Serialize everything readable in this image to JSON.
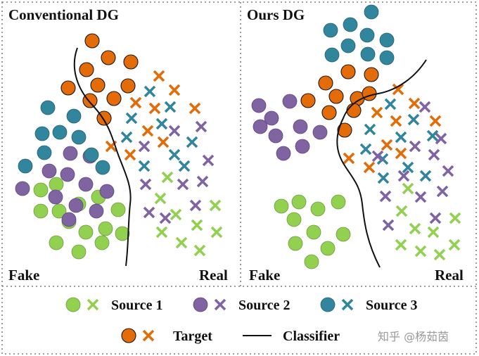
{
  "colors": {
    "source1": "#92d050",
    "source2": "#8064a2",
    "source3": "#31859c",
    "target": "#e36c09",
    "classifier": "#111111",
    "border": "#7f7f7f"
  },
  "panels": {
    "left": {
      "title": "Conventional DG",
      "fake_label": "Fake",
      "real_label": "Real",
      "points": [
        {
          "group": "source1",
          "marker": "circle",
          "items": [
            [
              58,
              270
            ],
            [
              80,
              262
            ],
            [
              58,
              300
            ],
            [
              84,
              300
            ],
            [
              112,
              290
            ],
            [
              140,
              280
            ],
            [
              168,
              298
            ],
            [
              98,
              315
            ],
            [
              122,
              330
            ],
            [
              150,
              325
            ],
            [
              174,
              332
            ],
            [
              80,
              345
            ],
            [
              112,
              358
            ],
            [
              145,
              345
            ]
          ]
        },
        {
          "group": "source2",
          "marker": "circle",
          "items": [
            [
              100,
              218
            ],
            [
              128,
              222
            ],
            [
              70,
              243
            ],
            [
              96,
              248
            ],
            [
              122,
              262
            ],
            [
              152,
              272
            ],
            [
              32,
              268
            ],
            [
              79,
              280
            ],
            [
              108,
              292
            ],
            [
              137,
              300
            ],
            [
              98,
              312
            ]
          ]
        },
        {
          "group": "source3",
          "marker": "circle",
          "items": [
            [
              68,
              153
            ],
            [
              105,
              165
            ],
            [
              60,
              190
            ],
            [
              85,
              188
            ],
            [
              112,
              195
            ],
            [
              130,
              220
            ],
            [
              63,
              217
            ],
            [
              36,
              236
            ],
            [
              146,
              238
            ]
          ]
        },
        {
          "group": "target",
          "marker": "circle",
          "items": [
            [
              131,
              58
            ],
            [
              154,
              82
            ],
            [
              186,
              88
            ],
            [
              123,
              99
            ],
            [
              139,
              121
            ],
            [
              182,
              122
            ],
            [
              97,
              125
            ],
            [
              128,
              143
            ],
            [
              162,
              140
            ],
            [
              148,
              168
            ]
          ]
        },
        {
          "group": "target",
          "marker": "cross",
          "items": [
            [
              226,
              108
            ],
            [
              248,
              128
            ],
            [
              193,
              146
            ],
            [
              220,
              154
            ],
            [
              277,
              154
            ],
            [
              210,
              186
            ],
            [
              232,
              202
            ],
            [
              158,
              208
            ],
            [
              185,
              220
            ]
          ]
        },
        {
          "group": "source3",
          "marker": "cross",
          "items": [
            [
              213,
              130
            ],
            [
              242,
              152
            ],
            [
              187,
              168
            ],
            [
              230,
              176
            ],
            [
              180,
              195
            ],
            [
              273,
              202
            ],
            [
              248,
              220
            ],
            [
              205,
              236
            ],
            [
              262,
              236
            ]
          ]
        },
        {
          "group": "source2",
          "marker": "cross",
          "items": [
            [
              286,
              180
            ],
            [
              248,
              186
            ],
            [
              205,
              208
            ],
            [
              296,
              228
            ],
            [
              207,
              262
            ],
            [
              260,
              262
            ],
            [
              288,
              258
            ],
            [
              212,
              302
            ],
            [
              278,
              292
            ],
            [
              235,
              310
            ]
          ]
        },
        {
          "group": "source1",
          "marker": "cross",
          "items": [
            [
              238,
              252
            ],
            [
              228,
              282
            ],
            [
              306,
              292
            ],
            [
              250,
              305
            ],
            [
              280,
              320
            ],
            [
              230,
              330
            ],
            [
              308,
              330
            ],
            [
              258,
              345
            ],
            [
              284,
              356
            ]
          ]
        }
      ]
    },
    "right": {
      "title": "Ours DG",
      "fake_label": "Fake",
      "real_label": "Real",
      "points": [
        {
          "group": "source3",
          "marker": "circle",
          "items": [
            [
              528,
              17
            ],
            [
              498,
              35
            ],
            [
              470,
              43
            ],
            [
              522,
              50
            ],
            [
              550,
              57
            ],
            [
              495,
              65
            ],
            [
              523,
              77
            ],
            [
              550,
              82
            ],
            [
              472,
              78
            ]
          ]
        },
        {
          "group": "target",
          "marker": "circle",
          "items": [
            [
              495,
              102
            ],
            [
              528,
              106
            ],
            [
              463,
              118
            ],
            [
              438,
              143
            ],
            [
              478,
              137
            ],
            [
              508,
              140
            ],
            [
              525,
              133
            ],
            [
              468,
              160
            ],
            [
              503,
              157
            ],
            [
              490,
              185
            ]
          ]
        },
        {
          "group": "source2",
          "marker": "circle",
          "items": [
            [
              368,
              150
            ],
            [
              386,
              168
            ],
            [
              412,
              144
            ],
            [
              370,
              180
            ],
            [
              392,
              193
            ],
            [
              427,
              180
            ],
            [
              455,
              188
            ],
            [
              403,
              218
            ],
            [
              430,
              208
            ]
          ]
        },
        {
          "group": "source1",
          "marker": "circle",
          "items": [
            [
              400,
              293
            ],
            [
              425,
              287
            ],
            [
              452,
              297
            ],
            [
              481,
              287
            ],
            [
              418,
              312
            ],
            [
              446,
              330
            ],
            [
              488,
              333
            ],
            [
              420,
              346
            ],
            [
              466,
              353
            ],
            [
              443,
              372
            ]
          ]
        },
        {
          "group": "target",
          "marker": "cross",
          "items": [
            [
              566,
              127
            ],
            [
              536,
              160
            ],
            [
              589,
              147
            ],
            [
              563,
              172
            ],
            [
              619,
              172
            ],
            [
              550,
              206
            ],
            [
              570,
              218
            ],
            [
              496,
              225
            ],
            [
              525,
              238
            ]
          ]
        },
        {
          "group": "source3",
          "marker": "cross",
          "items": [
            [
              555,
              148
            ],
            [
              526,
              184
            ],
            [
              570,
              195
            ],
            [
              588,
              170
            ],
            [
              615,
              193
            ],
            [
              520,
              212
            ],
            [
              544,
              226
            ],
            [
              580,
              238
            ],
            [
              605,
              250
            ],
            [
              545,
              253
            ]
          ]
        },
        {
          "group": "source2",
          "marker": "cross",
          "items": [
            [
              604,
              152
            ],
            [
              627,
              197
            ],
            [
              537,
              222
            ],
            [
              590,
              208
            ],
            [
              617,
              220
            ],
            [
              637,
              243
            ],
            [
              574,
              250
            ],
            [
              629,
              272
            ],
            [
              548,
              279
            ],
            [
              598,
              280
            ],
            [
              619,
              310
            ],
            [
              552,
              320
            ]
          ]
        },
        {
          "group": "source1",
          "marker": "cross",
          "items": [
            [
              580,
              268
            ],
            [
              571,
              300
            ],
            [
              647,
              310
            ],
            [
              590,
              325
            ],
            [
              616,
              330
            ],
            [
              570,
              348
            ],
            [
              646,
              348
            ],
            [
              598,
              357
            ],
            [
              625,
              362
            ]
          ]
        }
      ]
    }
  },
  "legend": {
    "rows": [
      [
        {
          "group": "source1",
          "label": "Source 1"
        },
        {
          "group": "source2",
          "label": "Source 2"
        },
        {
          "group": "source3",
          "label": "Source 3"
        }
      ],
      [
        {
          "group": "target",
          "label": "Target"
        },
        {
          "group": "classifier",
          "label": "Classifier"
        }
      ]
    ]
  },
  "watermark": "知乎 @杨茹茵"
}
